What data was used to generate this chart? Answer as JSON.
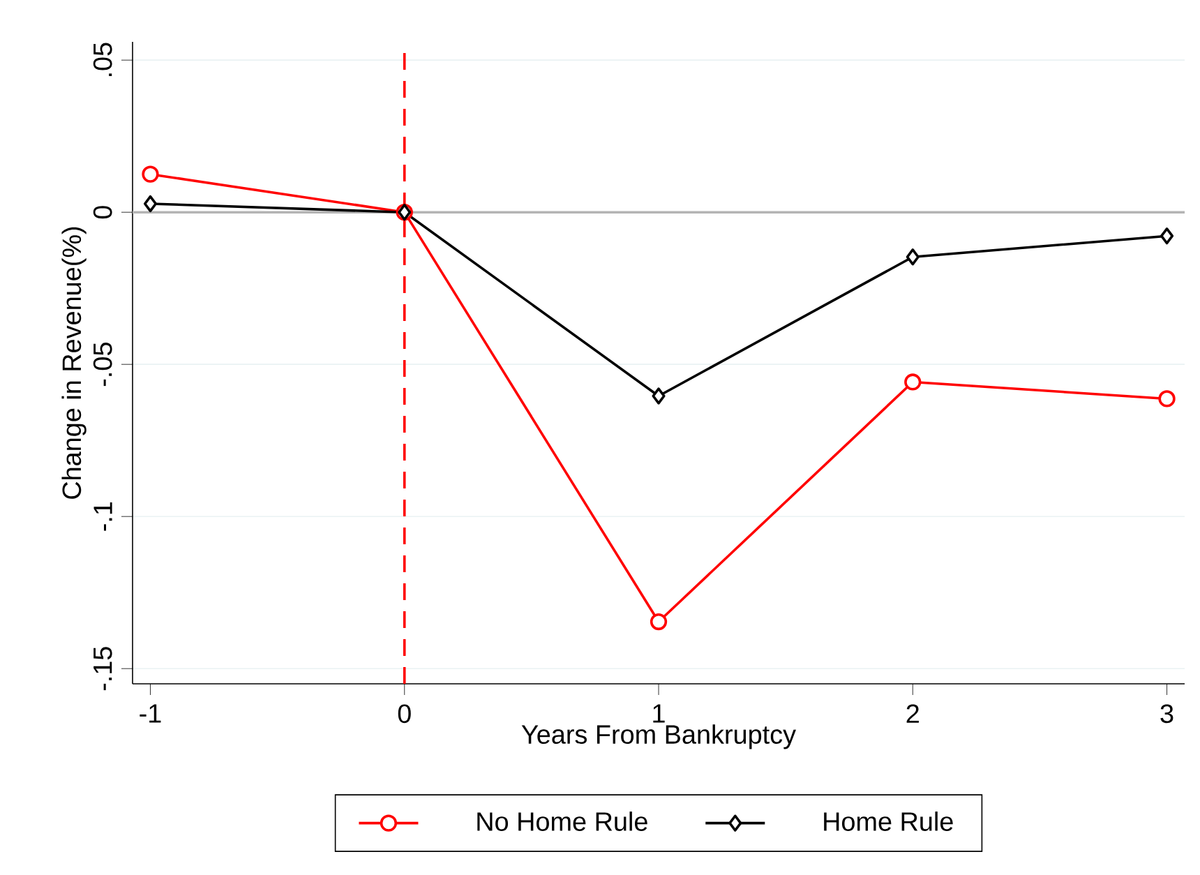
{
  "chart_data": {
    "type": "line",
    "xlabel": "Years From Bankruptcy",
    "ylabel": "Change in Revenue(%)",
    "x": [
      -1,
      0,
      1,
      2,
      3
    ],
    "series": [
      {
        "name": "No Home Rule",
        "color": "#ff0000",
        "marker": "circle",
        "values": [
          0.0125,
          0,
          -0.1346,
          -0.0558,
          -0.0613
        ]
      },
      {
        "name": "Home Rule",
        "color": "#000000",
        "marker": "diamond",
        "values": [
          0.0028,
          0,
          -0.0604,
          -0.0147,
          -0.0078
        ]
      }
    ],
    "xlim": [
      -1.07,
      3.07
    ],
    "ylim": [
      -0.155,
      0.056
    ],
    "xticks": [
      -1,
      0,
      1,
      2,
      3
    ],
    "yticks": [
      {
        "value": -0.15,
        "label": "-.15"
      },
      {
        "value": -0.1,
        "label": "-.1"
      },
      {
        "value": -0.05,
        "label": "-.05"
      },
      {
        "value": 0,
        "label": "0"
      },
      {
        "value": 0.05,
        "label": ".05"
      }
    ],
    "ref_lines": [
      {
        "axis": "x",
        "value": 0,
        "color": "#ff0000",
        "line_style": "dashed"
      },
      {
        "axis": "y",
        "value": 0,
        "color": "#b4b4b4",
        "line_style": "solid"
      }
    ],
    "grid": "y",
    "legend": "bottom",
    "line_style": "solid"
  }
}
